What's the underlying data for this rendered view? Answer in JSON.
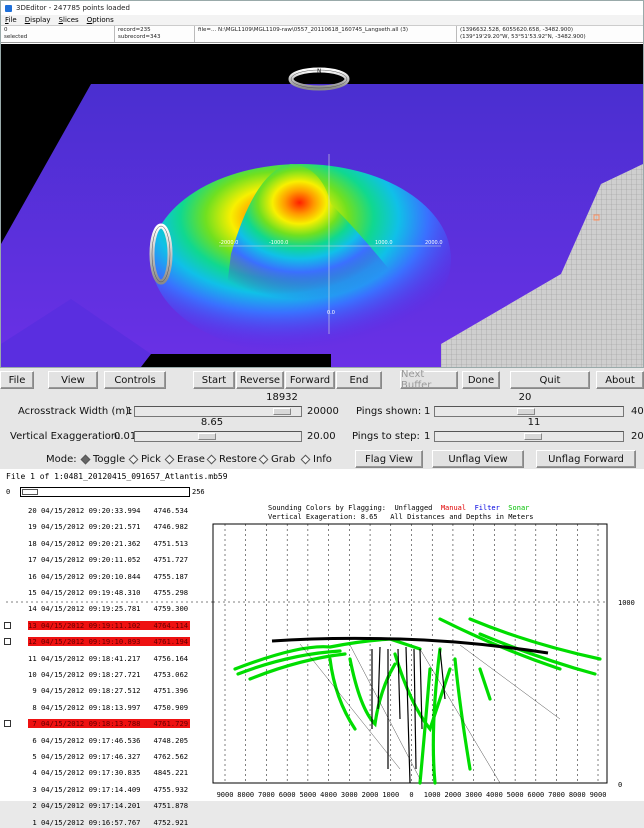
{
  "window3d": {
    "title": "3DEditor - 247785 points loaded",
    "menu": [
      "File",
      "Display",
      "Slices",
      "Options"
    ],
    "info": {
      "c1_line1": "0",
      "c1_line2": "selected",
      "c2_line1": "record=235",
      "c2_line2": "subrecord=343",
      "c3_line1": "file=... N:\\MGL1109\\MGL1109-raw\\0557_20110618_160745_Langseth.all (3)",
      "c4_line1": "(1396632.528, 6055620.658, -3482.900)",
      "c4_line2": "(139°19'29.20\"W, 53°51'53.92\"N, -3482.900)"
    },
    "axis_labels": [
      "-2000.0",
      "-1000.0",
      "1000.0",
      "2000.0",
      "0.0",
      "-2000.0"
    ],
    "compass_letter": "N"
  },
  "toolbar": {
    "file": "File",
    "view": "View",
    "controls": "Controls",
    "start": "Start",
    "reverse": "Reverse",
    "forward": "Forward",
    "end": "End",
    "next_buffer": "Next Buffer",
    "done": "Done",
    "quit": "Quit",
    "about": "About"
  },
  "sliders": {
    "acrosstrack_label": "Acrosstrack Width (m):",
    "acrosstrack_min": "1",
    "acrosstrack_value": "18932",
    "acrosstrack_max": "20000",
    "acrosstrack_fraction": 0.947,
    "vexag_label": "Vertical Exaggeration:",
    "vexag_min": "0.01",
    "vexag_value": "8.65",
    "vexag_max": "20.00",
    "vexag_fraction": 0.432,
    "pings_shown_label": "Pings shown:",
    "pings_shown_min": "1",
    "pings_shown_value": "20",
    "pings_shown_max": "40",
    "pings_shown_fraction": 0.49,
    "pings_step_label": "Pings to step:",
    "pings_step_min": "1",
    "pings_step_value": "11",
    "pings_step_max": "20",
    "pings_step_fraction": 0.53
  },
  "mode": {
    "label": "Mode:",
    "options": [
      "Toggle",
      "Pick",
      "Erase",
      "Restore",
      "Grab",
      "Info"
    ],
    "selected": "Toggle"
  },
  "flag_buttons": {
    "flag_view": "Flag View",
    "unflag_view": "Unflag View",
    "unflag_forward": "Unflag Forward"
  },
  "file_info": {
    "line": "File 1 of 1:0481_20120415_091657_Atlantis.mb59",
    "scroll_min": "0",
    "scroll_max": "256"
  },
  "plot_header": {
    "line1_prefix": "Sounding Colors by Flagging:",
    "unflagged": "Unflagged",
    "manual": "Manual",
    "filter": "Filter",
    "sonar": "Sonar",
    "line2": "Vertical Exageration: 8.65   All Distances and Depths in Meters",
    "colors": {
      "manual": "#e00000",
      "filter": "#0000e0",
      "sonar": "#00c000"
    }
  },
  "pings": [
    {
      "n": "20",
      "date": "04/15/2012",
      "time": "09:20:33.994",
      "depth": "4746.534",
      "flagged": false
    },
    {
      "n": "19",
      "date": "04/15/2012",
      "time": "09:20:21.571",
      "depth": "4746.982",
      "flagged": false
    },
    {
      "n": "18",
      "date": "04/15/2012",
      "time": "09:20:21.362",
      "depth": "4751.513",
      "flagged": false
    },
    {
      "n": "17",
      "date": "04/15/2012",
      "time": "09:20:11.052",
      "depth": "4751.727",
      "flagged": false
    },
    {
      "n": "16",
      "date": "04/15/2012",
      "time": "09:20:10.844",
      "depth": "4755.187",
      "flagged": false
    },
    {
      "n": "15",
      "date": "04/15/2012",
      "time": "09:19:48.310",
      "depth": "4755.298",
      "flagged": false
    },
    {
      "n": "14",
      "date": "04/15/2012",
      "time": "09:19:25.781",
      "depth": "4759.300",
      "flagged": false
    },
    {
      "n": "13",
      "date": "04/15/2012",
      "time": "09:19:11.102",
      "depth": "4764.114",
      "flagged": true
    },
    {
      "n": "12",
      "date": "04/15/2012",
      "time": "09:19:10.893",
      "depth": "4761.194",
      "flagged": true
    },
    {
      "n": "11",
      "date": "04/15/2012",
      "time": "09:18:41.217",
      "depth": "4756.164",
      "flagged": false
    },
    {
      "n": "10",
      "date": "04/15/2012",
      "time": "09:18:27.721",
      "depth": "4753.062",
      "flagged": false
    },
    {
      "n": "9",
      "date": "04/15/2012",
      "time": "09:18:27.512",
      "depth": "4751.396",
      "flagged": false
    },
    {
      "n": "8",
      "date": "04/15/2012",
      "time": "09:18:13.997",
      "depth": "4750.909",
      "flagged": false
    },
    {
      "n": "7",
      "date": "04/15/2012",
      "time": "09:18:13.788",
      "depth": "4761.729",
      "flagged": true
    },
    {
      "n": "6",
      "date": "04/15/2012",
      "time": "09:17:46.536",
      "depth": "4748.205",
      "flagged": false
    },
    {
      "n": "5",
      "date": "04/15/2012",
      "time": "09:17:46.327",
      "depth": "4762.562",
      "flagged": false
    },
    {
      "n": "4",
      "date": "04/15/2012",
      "time": "09:17:30.835",
      "depth": "4845.221",
      "flagged": false
    },
    {
      "n": "3",
      "date": "04/15/2012",
      "time": "09:17:14.409",
      "depth": "4755.932",
      "flagged": false
    },
    {
      "n": "2",
      "date": "04/15/2012",
      "time": "09:17:14.201",
      "depth": "4751.878",
      "flagged": false
    },
    {
      "n": "1",
      "date": "04/15/2012",
      "time": "09:16:57.767",
      "depth": "4752.921",
      "flagged": false
    }
  ],
  "plot_axis": {
    "x_ticks": [
      "9000",
      "8000",
      "7000",
      "6000",
      "5000",
      "4000",
      "3000",
      "2000",
      "1000",
      "0",
      "1000",
      "2000",
      "3000",
      "4000",
      "5000",
      "6000",
      "7000",
      "8000",
      "9000"
    ],
    "y_labels": [
      "1000",
      "0"
    ]
  },
  "colors": {
    "flag_highlight": "#e11111",
    "sonar_green": "#00dd00",
    "unflagged_black": "#000000",
    "panel_bg": "#e6e6e6"
  }
}
